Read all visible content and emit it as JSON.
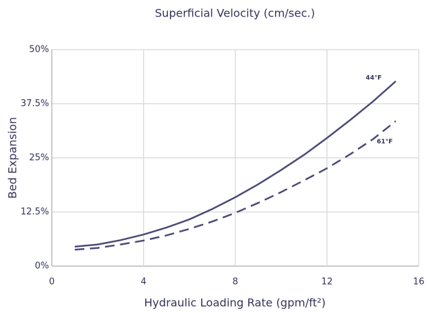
{
  "chart_data": {
    "type": "line",
    "title": "Superficial Velocity (cm/sec.)",
    "x_label": "Hydraulic Loading Rate (gpm/ft²)",
    "y_label": "Bed Expansion",
    "x": [
      1,
      2,
      3,
      4,
      5,
      6,
      7,
      8,
      9,
      10,
      11,
      12,
      13,
      14,
      15
    ],
    "series": [
      {
        "name": "44°F",
        "color": "#4b4a77",
        "dash": false,
        "values": [
          4.5,
          5.0,
          6.0,
          7.3,
          8.9,
          10.8,
          13.2,
          15.9,
          18.9,
          22.2,
          25.7,
          29.6,
          33.7,
          38.0,
          42.7
        ]
      },
      {
        "name": "61°F",
        "color": "#4b4a77",
        "dash": true,
        "values": [
          3.8,
          4.2,
          5.0,
          5.9,
          7.1,
          8.6,
          10.3,
          12.3,
          14.6,
          17.1,
          19.8,
          22.6,
          25.8,
          29.3,
          33.5
        ]
      }
    ],
    "xlim": [
      0,
      16
    ],
    "xticks": [
      0,
      4,
      8,
      12,
      16
    ],
    "ylim": [
      0,
      50
    ],
    "yticks": [
      {
        "value": 0,
        "label": "0%"
      },
      {
        "value": 12.5,
        "label": "12.5%"
      },
      {
        "value": 25,
        "label": "25%"
      },
      {
        "value": 37.5,
        "label": "37.5%"
      },
      {
        "value": 50,
        "label": "50%"
      }
    ],
    "grid": true
  }
}
